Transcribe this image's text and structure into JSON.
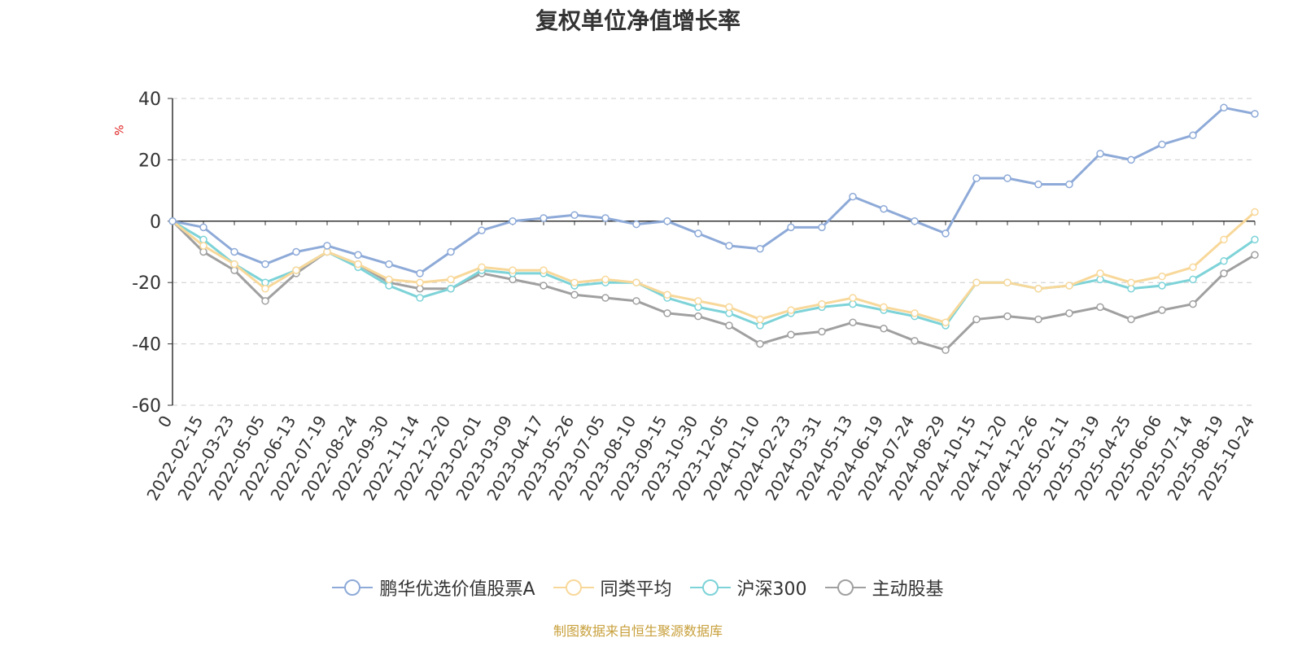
{
  "chart_data": {
    "type": "line",
    "title": "复权单位净值增长率",
    "ylabel": "%",
    "xlabel": "",
    "ylim": [
      -60,
      40
    ],
    "yticks": [
      40,
      20,
      0,
      -20,
      -40,
      -60
    ],
    "x_tick_labels": [
      "0",
      "2022-02-15",
      "2022-03-23",
      "2022-05-05",
      "2022-06-13",
      "2022-07-19",
      "2022-08-24",
      "2022-09-30",
      "2022-11-14",
      "2022-12-20",
      "2023-02-01",
      "2023-03-09",
      "2023-04-17",
      "2023-05-26",
      "2023-07-05",
      "2023-08-10",
      "2023-09-15",
      "2023-10-30",
      "2023-12-05",
      "2024-01-10",
      "2024-02-23",
      "2024-03-31",
      "2024-05-13",
      "2024-06-19",
      "2024-07-24",
      "2024-08-29",
      "2024-10-15",
      "2024-11-20",
      "2024-12-26",
      "2025-02-11",
      "2025-03-19",
      "2025-04-25",
      "2025-06-06",
      "2025-07-14",
      "2025-08-19",
      "2025-10-24"
    ],
    "grid": true,
    "legend_position": "bottom",
    "series": [
      {
        "name": "鹏华优选价值股票A",
        "color": "#8eaad8",
        "values": [
          0,
          -2,
          -10,
          -14,
          -10,
          -8,
          -11,
          -14,
          -17,
          -10,
          -3,
          0,
          1,
          2,
          1,
          -1,
          0,
          -4,
          -8,
          -9,
          -2,
          -2,
          8,
          4,
          0,
          -4,
          14,
          14,
          12,
          12,
          22,
          20,
          25,
          28,
          37,
          35
        ]
      },
      {
        "name": "同类平均",
        "color": "#f8d89a",
        "values": [
          0,
          -8,
          -14,
          -22,
          -16,
          -10,
          -14,
          -19,
          -20,
          -19,
          -15,
          -16,
          -16,
          -20,
          -19,
          -20,
          -24,
          -26,
          -28,
          -32,
          -29,
          -27,
          -25,
          -28,
          -30,
          -33,
          -20,
          -20,
          -22,
          -21,
          -17,
          -20,
          -18,
          -15,
          -6,
          3
        ]
      },
      {
        "name": "沪深300",
        "color": "#7dd3d8",
        "values": [
          0,
          -6,
          -14,
          -20,
          -16,
          -10,
          -15,
          -21,
          -25,
          -22,
          -16,
          -17,
          -17,
          -21,
          -20,
          -20,
          -25,
          -28,
          -30,
          -34,
          -30,
          -28,
          -27,
          -29,
          -31,
          -34,
          -20,
          -20,
          -22,
          -21,
          -19,
          -22,
          -21,
          -19,
          -13,
          -6
        ]
      },
      {
        "name": "主动股基",
        "color": "#a0a0a0",
        "values": [
          0,
          -10,
          -16,
          -26,
          -17,
          -10,
          -14,
          -20,
          -22,
          -22,
          -17,
          -19,
          -21,
          -24,
          -25,
          -26,
          -30,
          -31,
          -34,
          -40,
          -37,
          -36,
          -33,
          -35,
          -39,
          -42,
          -32,
          -31,
          -32,
          -30,
          -28,
          -32,
          -29,
          -27,
          -17,
          -11
        ]
      }
    ]
  },
  "source": "制图数据来自恒生聚源数据库"
}
